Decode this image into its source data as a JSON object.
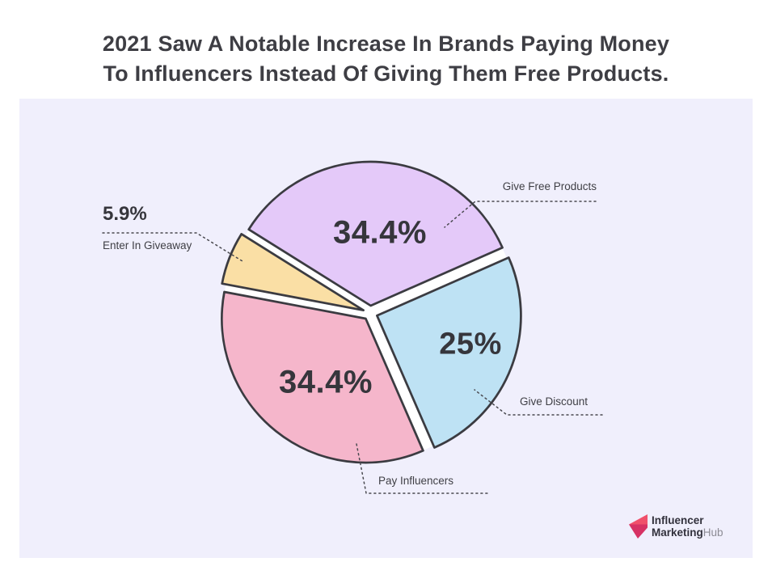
{
  "title": {
    "line1": "2021 Saw A Notable Increase In Brands Paying Money",
    "line2": "To Influencers Instead Of Giving Them Free Products."
  },
  "chart_data": {
    "type": "pie",
    "title": "2021 Saw A Notable Increase In Brands Paying Money To Influencers Instead Of Giving Them Free Products.",
    "units": "percent",
    "start_angle_deg": 148,
    "direction": "clockwise",
    "legend_position": "callout-labels",
    "outline_color": "#3B3B41",
    "gap_color": "#FFFFFF",
    "slices": [
      {
        "label": "Give Free Products",
        "value": 34.4,
        "display": "34.4%",
        "color": "#E4C9F9",
        "label_inside": true,
        "label_frac": 0.51,
        "label_angle": 82.5,
        "label_size": 40
      },
      {
        "label": "Give Discount",
        "value": 25,
        "display": "25%",
        "color": "#BEE2F4",
        "label_inside": true,
        "label_frac": 0.68,
        "label_angle": -17.4,
        "label_size": 38
      },
      {
        "label": "Pay Influencers",
        "value": 34.4,
        "display": "34.4%",
        "color": "#F5B6CB",
        "label_inside": true,
        "label_frac": 0.525,
        "label_angle": 238,
        "label_size": 40
      },
      {
        "label": "Enter In Giveaway",
        "value": 5.9,
        "display": "5.9%",
        "color": "#FADFA5",
        "label_inside": false
      }
    ]
  },
  "branding": {
    "line1": "Influencer",
    "line2_bold": "Marketing",
    "line2_gray": "Hub",
    "icon_color_light": "#F0506B",
    "icon_color_dark": "#D63264"
  },
  "colors": {
    "page_bg": "#FFFFFF",
    "panel_bg": "#F0EFFC",
    "title_text": "#3E3E44",
    "label_text": "#3F3F45",
    "value_text": "#36363C",
    "leader_line": "#4A4A50"
  }
}
